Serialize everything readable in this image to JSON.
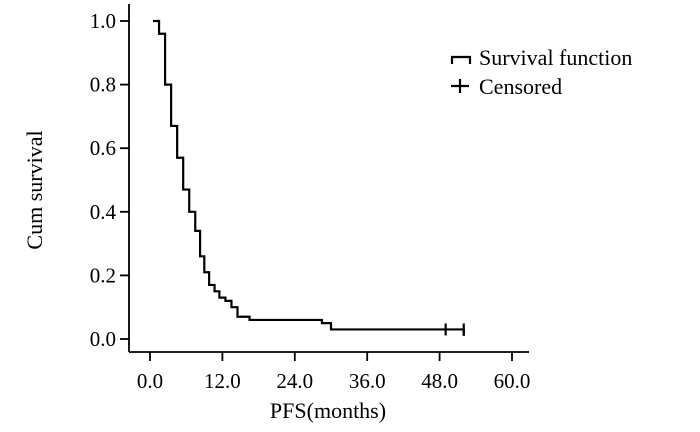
{
  "chart_data": {
    "type": "line",
    "title": "",
    "xlabel": "PFS(months)",
    "ylabel": "Cum survival",
    "xlim": [
      0,
      60
    ],
    "ylim": [
      0,
      1.0
    ],
    "xticks": [
      "0.0",
      "12.0",
      "24.0",
      "36.0",
      "48.0",
      "60.0"
    ],
    "yticks": [
      "0.0",
      "0.2",
      "0.4",
      "0.6",
      "0.8",
      "1.0"
    ],
    "grid": false,
    "legend_position": "top-right",
    "legend": [
      "Survival function",
      "Censored"
    ],
    "series": [
      {
        "name": "Survival function",
        "type": "step",
        "x": [
          0.5,
          1.5,
          2.5,
          3.5,
          4.5,
          5.5,
          6.5,
          7.5,
          8.3,
          9.0,
          9.8,
          10.7,
          11.5,
          12.5,
          13.5,
          14.5,
          16.5,
          18.5,
          28.5,
          30.0,
          52.0
        ],
        "y": [
          1.0,
          0.96,
          0.8,
          0.67,
          0.57,
          0.47,
          0.4,
          0.34,
          0.26,
          0.21,
          0.17,
          0.15,
          0.13,
          0.12,
          0.1,
          0.07,
          0.06,
          0.06,
          0.05,
          0.03,
          0.03
        ]
      },
      {
        "name": "Censored",
        "type": "marker",
        "x": [
          49.0,
          52.0
        ],
        "y": [
          0.03,
          0.03
        ]
      }
    ],
    "end_drop": [
      52.0,
      0.01
    ]
  }
}
